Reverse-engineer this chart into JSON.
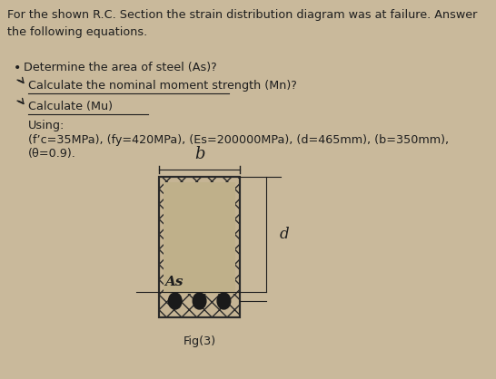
{
  "background_color": "#c9b99b",
  "title_text": "For the shown R.C. Section the strain distribution diagram was at failure. Answer\nthe following equations.",
  "bullet1": "Determine the area of steel (As)?",
  "bullet2": "Calculate the nominal moment strength (Mn)?",
  "bullet3": "Calculate (Mu)",
  "using_label": "Using:",
  "params_line1": "(f’c=35MPa), (fy=420MPa), (Es=200000MPa), (d=465mm), (b=350mm),",
  "params_line2": "(θ=0.9).",
  "fig_label": "Fig(3)",
  "b_label": "b",
  "d_label": "d",
  "As_label": "As",
  "text_color": "#1e1e1e",
  "circle_color": "#1a1a1a",
  "font_size_main": 9.2,
  "font_size_label": 10.5
}
